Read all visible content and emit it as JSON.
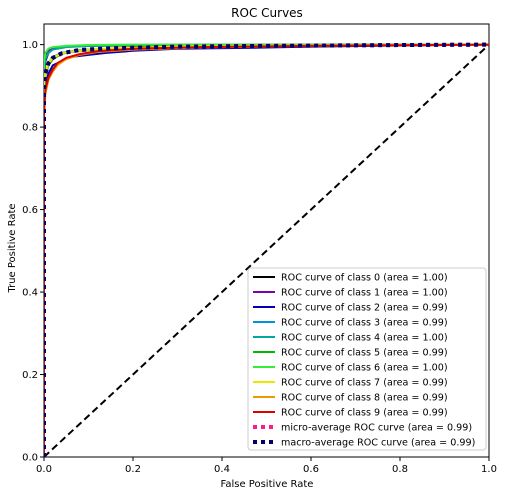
{
  "chart_data": {
    "type": "line",
    "title": "ROC Curves",
    "xlabel": "False Positive Rate",
    "ylabel": "True Positive Rate",
    "xlim": [
      0,
      1
    ],
    "ylim": [
      0,
      1.05
    ],
    "x_ticks": [
      "0.0",
      "0.2",
      "0.4",
      "0.6",
      "0.8",
      "1.0"
    ],
    "y_ticks": [
      "0.0",
      "0.2",
      "0.4",
      "0.6",
      "0.8",
      "1.0"
    ],
    "grid": false,
    "legend_position": "lower-right",
    "series": [
      {
        "name": "ROC curve of class 0 (area = 1.00)",
        "color": "#000000",
        "style": "solid",
        "x": [
          0,
          0,
          0.003,
          0.01,
          0.02,
          0.05,
          0.1,
          0.2,
          0.4,
          0.7,
          1.0
        ],
        "y": [
          0,
          0.93,
          0.96,
          0.98,
          0.99,
          0.995,
          0.997,
          0.998,
          0.999,
          1.0,
          1.0
        ]
      },
      {
        "name": "ROC curve of class 1 (area = 1.00)",
        "color": "#7e00a8",
        "style": "solid",
        "x": [
          0,
          0,
          0.003,
          0.01,
          0.02,
          0.05,
          0.1,
          0.2,
          0.4,
          0.7,
          1.0
        ],
        "y": [
          0,
          0.95,
          0.975,
          0.985,
          0.99,
          0.996,
          0.998,
          0.999,
          1.0,
          1.0,
          1.0
        ]
      },
      {
        "name": "ROC curve of class 2 (area = 0.99)",
        "color": "#0000b8",
        "style": "solid",
        "x": [
          0,
          0,
          0.003,
          0.01,
          0.02,
          0.04,
          0.06,
          0.1,
          0.14,
          0.2,
          0.3,
          0.45,
          0.6,
          0.8,
          1.0
        ],
        "y": [
          0,
          0.86,
          0.9,
          0.93,
          0.95,
          0.96,
          0.97,
          0.975,
          0.98,
          0.985,
          0.99,
          0.992,
          0.995,
          0.998,
          1.0
        ]
      },
      {
        "name": "ROC curve of class 3 (area = 0.99)",
        "color": "#0090dd",
        "style": "solid",
        "x": [
          0,
          0,
          0.003,
          0.01,
          0.02,
          0.04,
          0.08,
          0.15,
          0.3,
          0.5,
          0.8,
          1.0
        ],
        "y": [
          0,
          0.9,
          0.93,
          0.955,
          0.97,
          0.98,
          0.987,
          0.99,
          0.995,
          0.997,
          0.999,
          1.0
        ]
      },
      {
        "name": "ROC curve of class 4 (area = 1.00)",
        "color": "#00a8a0",
        "style": "solid",
        "x": [
          0,
          0,
          0.003,
          0.01,
          0.02,
          0.05,
          0.1,
          0.2,
          0.4,
          0.7,
          1.0
        ],
        "y": [
          0,
          0.94,
          0.965,
          0.98,
          0.988,
          0.994,
          0.997,
          0.999,
          1.0,
          1.0,
          1.0
        ]
      },
      {
        "name": "ROC curve of class 5 (area = 0.99)",
        "color": "#00b800",
        "style": "solid",
        "x": [
          0,
          0,
          0.003,
          0.01,
          0.02,
          0.04,
          0.08,
          0.15,
          0.3,
          0.5,
          0.8,
          1.0
        ],
        "y": [
          0,
          0.89,
          0.925,
          0.95,
          0.965,
          0.978,
          0.985,
          0.99,
          0.994,
          0.997,
          0.999,
          1.0
        ]
      },
      {
        "name": "ROC curve of class 6 (area = 1.00)",
        "color": "#33ee33",
        "style": "solid",
        "x": [
          0,
          0,
          0.003,
          0.01,
          0.02,
          0.05,
          0.1,
          0.2,
          0.4,
          0.7,
          1.0
        ],
        "y": [
          0,
          0.96,
          0.98,
          0.99,
          0.994,
          0.997,
          0.999,
          1.0,
          1.0,
          1.0,
          1.0
        ]
      },
      {
        "name": "ROC curve of class 7 (area = 0.99)",
        "color": "#e8e800",
        "style": "solid",
        "x": [
          0,
          0,
          0.003,
          0.01,
          0.02,
          0.04,
          0.08,
          0.15,
          0.3,
          0.5,
          0.8,
          1.0
        ],
        "y": [
          0,
          0.9,
          0.93,
          0.955,
          0.968,
          0.979,
          0.986,
          0.991,
          0.995,
          0.997,
          0.999,
          1.0
        ]
      },
      {
        "name": "ROC curve of class 8 (area = 0.99)",
        "color": "#ee9900",
        "style": "solid",
        "x": [
          0,
          0,
          0.003,
          0.01,
          0.02,
          0.03,
          0.05,
          0.08,
          0.12,
          0.2,
          0.35,
          0.6,
          1.0
        ],
        "y": [
          0,
          0.82,
          0.88,
          0.915,
          0.935,
          0.95,
          0.965,
          0.975,
          0.982,
          0.988,
          0.993,
          0.997,
          1.0
        ]
      },
      {
        "name": "ROC curve of class 9 (area = 0.99)",
        "color": "#dd0000",
        "style": "solid",
        "x": [
          0,
          0,
          0.003,
          0.01,
          0.02,
          0.03,
          0.05,
          0.08,
          0.12,
          0.2,
          0.35,
          0.6,
          1.0
        ],
        "y": [
          0,
          0.84,
          0.89,
          0.92,
          0.94,
          0.955,
          0.968,
          0.977,
          0.984,
          0.99,
          0.994,
          0.997,
          1.0
        ]
      },
      {
        "name": "micro-average ROC curve (area = 0.99)",
        "color": "#ff1a8c",
        "style": "dotted",
        "x": [
          0,
          0,
          0.003,
          0.01,
          0.02,
          0.04,
          0.08,
          0.15,
          0.3,
          0.5,
          0.8,
          1.0
        ],
        "y": [
          0,
          0.9,
          0.93,
          0.955,
          0.968,
          0.979,
          0.987,
          0.991,
          0.995,
          0.997,
          0.999,
          1.0
        ]
      },
      {
        "name": "macro-average ROC curve (area = 0.99)",
        "color": "#000066",
        "style": "dotted",
        "x": [
          0,
          0,
          0.003,
          0.01,
          0.02,
          0.04,
          0.08,
          0.15,
          0.3,
          0.5,
          0.8,
          1.0
        ],
        "y": [
          0,
          0.9,
          0.93,
          0.955,
          0.968,
          0.979,
          0.987,
          0.991,
          0.995,
          0.997,
          0.999,
          1.0
        ]
      }
    ],
    "reference_line": {
      "x": [
        0,
        1
      ],
      "y": [
        0,
        1
      ],
      "color": "#000000",
      "style": "dashed"
    }
  }
}
